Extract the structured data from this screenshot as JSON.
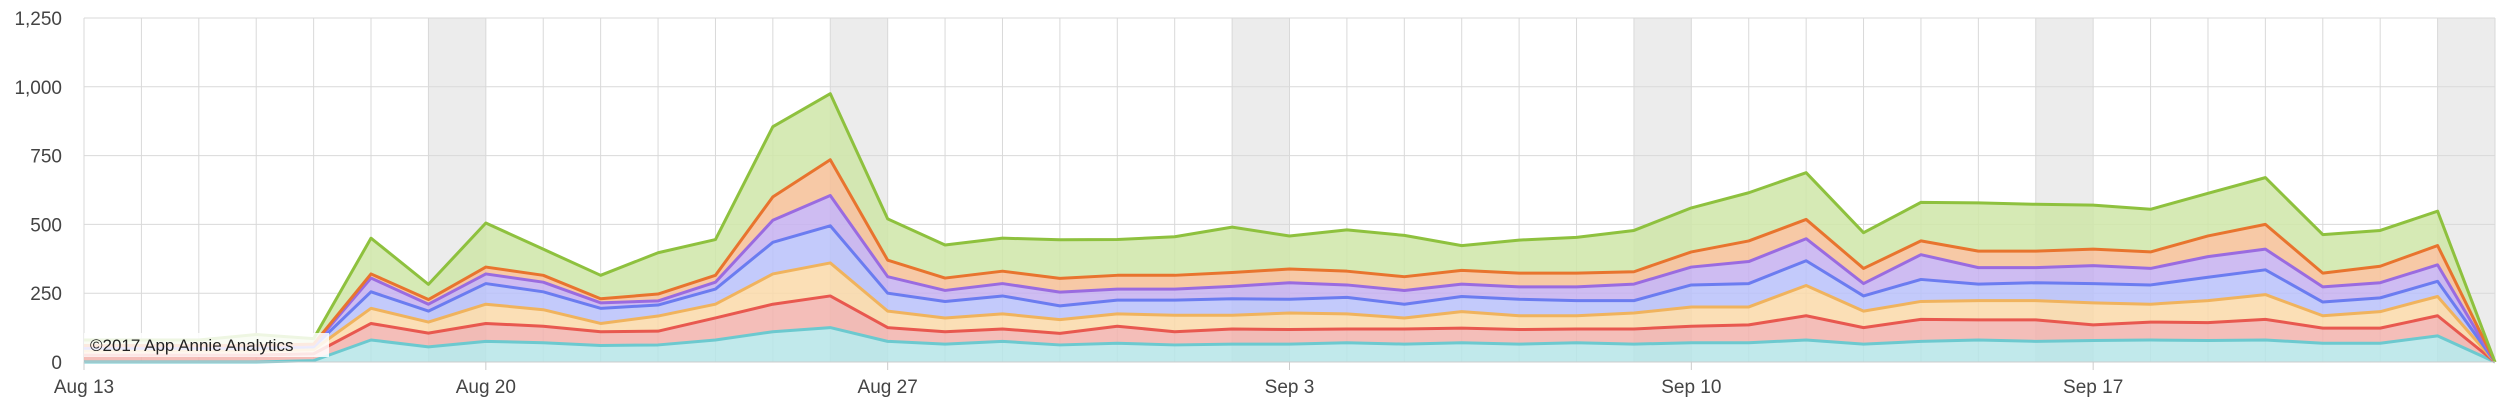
{
  "credit": "©2017 App Annie Analytics",
  "colors": {
    "weekend_band": "#ececec",
    "grid": "#d9d9d9",
    "axis": "#cccccc"
  },
  "chart_data": {
    "type": "area",
    "stacked": true,
    "grid": true,
    "weekend_bands": true,
    "x": [
      "Aug 13",
      "Aug 14",
      "Aug 15",
      "Aug 16",
      "Aug 17",
      "Aug 18",
      "Aug 19",
      "Aug 20",
      "Aug 21",
      "Aug 22",
      "Aug 23",
      "Aug 24",
      "Aug 25",
      "Aug 26",
      "Aug 27",
      "Aug 28",
      "Aug 29",
      "Aug 30",
      "Aug 31",
      "Sep 1",
      "Sep 2",
      "Sep 3",
      "Sep 4",
      "Sep 5",
      "Sep 6",
      "Sep 7",
      "Sep 8",
      "Sep 9",
      "Sep 10",
      "Sep 11",
      "Sep 12",
      "Sep 13",
      "Sep 14",
      "Sep 15",
      "Sep 16",
      "Sep 17",
      "Sep 18",
      "Sep 19",
      "Sep 20",
      "Sep 21",
      "Sep 22",
      "Sep 23",
      "Sep 24"
    ],
    "xticks": [
      "Aug 13",
      "Aug 20",
      "Aug 27",
      "Sep 3",
      "Sep 10",
      "Sep 17"
    ],
    "ylim": [
      0,
      1250
    ],
    "yticks": [
      "0",
      "250",
      "500",
      "750",
      "1,000",
      "1,250"
    ],
    "yticks_values": [
      0,
      250,
      500,
      750,
      1000,
      1250
    ],
    "series": [
      {
        "color": "#6cc9cf",
        "fill": "#b6e5e8",
        "values": [
          0,
          0,
          0,
          0,
          5,
          80,
          55,
          75,
          70,
          60,
          62,
          80,
          110,
          125,
          75,
          65,
          75,
          62,
          68,
          62,
          65,
          65,
          70,
          65,
          70,
          65,
          70,
          65,
          70,
          70,
          80,
          65,
          75,
          80,
          75,
          78,
          80,
          78,
          80,
          68,
          68,
          95,
          0
        ]
      },
      {
        "color": "#e8584f",
        "fill": "#f2b3ad",
        "values": [
          25,
          25,
          25,
          25,
          25,
          60,
          50,
          65,
          60,
          50,
          50,
          80,
          100,
          115,
          50,
          45,
          45,
          42,
          62,
          48,
          55,
          53,
          50,
          55,
          53,
          53,
          50,
          55,
          60,
          65,
          88,
          60,
          80,
          73,
          78,
          57,
          65,
          65,
          75,
          55,
          55,
          73,
          0
        ]
      },
      {
        "color": "#f0b35d",
        "fill": "#fad9a9",
        "values": [
          15,
          15,
          15,
          15,
          15,
          55,
          40,
          70,
          60,
          30,
          55,
          50,
          110,
          120,
          60,
          50,
          55,
          50,
          45,
          60,
          50,
          60,
          55,
          40,
          60,
          50,
          48,
          58,
          70,
          65,
          110,
          60,
          65,
          70,
          70,
          80,
          65,
          80,
          90,
          45,
          60,
          70,
          0
        ]
      },
      {
        "color": "#6b7cf0",
        "fill": "#b8c1fa",
        "values": [
          10,
          10,
          10,
          10,
          10,
          60,
          40,
          75,
          65,
          55,
          40,
          55,
          115,
          135,
          65,
          60,
          65,
          50,
          50,
          55,
          60,
          50,
          60,
          50,
          55,
          60,
          55,
          45,
          80,
          85,
          90,
          55,
          80,
          60,
          65,
          70,
          70,
          85,
          90,
          50,
          50,
          55,
          0
        ]
      },
      {
        "color": "#9a6be0",
        "fill": "#c5b0f0",
        "values": [
          6,
          6,
          6,
          6,
          6,
          50,
          25,
          35,
          35,
          20,
          15,
          25,
          80,
          110,
          60,
          40,
          45,
          50,
          40,
          40,
          45,
          60,
          45,
          50,
          45,
          45,
          50,
          60,
          65,
          80,
          80,
          45,
          90,
          60,
          55,
          65,
          60,
          75,
          75,
          55,
          55,
          60,
          0
        ]
      },
      {
        "color": "#e8742e",
        "fill": "#f6bf97",
        "values": [
          4,
          4,
          4,
          4,
          4,
          15,
          17,
          25,
          25,
          15,
          25,
          25,
          85,
          130,
          60,
          45,
          45,
          50,
          50,
          50,
          50,
          50,
          50,
          50,
          50,
          50,
          50,
          45,
          55,
          75,
          70,
          55,
          50,
          60,
          60,
          60,
          60,
          75,
          90,
          50,
          60,
          70,
          0
        ]
      },
      {
        "color": "#8ec13e",
        "fill": "#cfe6a8",
        "values": [
          20,
          20,
          20,
          40,
          20,
          130,
          55,
          160,
          95,
          85,
          150,
          130,
          255,
          240,
          150,
          120,
          120,
          140,
          130,
          140,
          165,
          120,
          150,
          150,
          90,
          120,
          130,
          150,
          160,
          175,
          170,
          130,
          140,
          175,
          170,
          160,
          155,
          155,
          170,
          140,
          130,
          125,
          0
        ]
      }
    ]
  }
}
